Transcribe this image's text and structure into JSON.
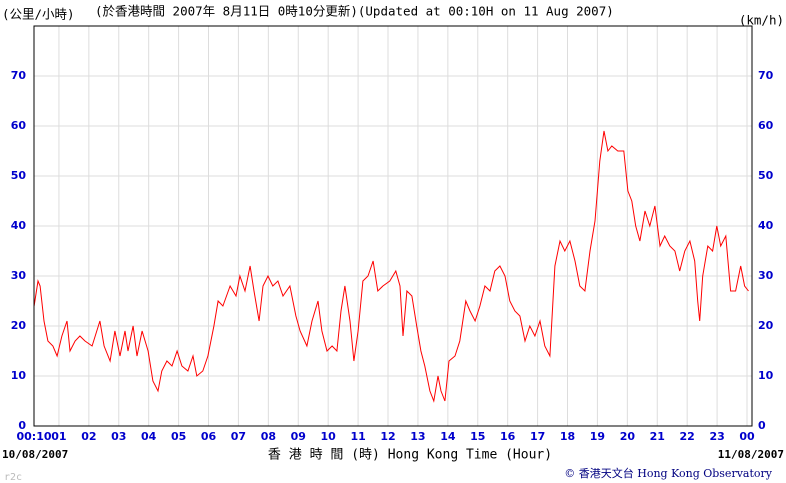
{
  "chart_data": {
    "type": "line",
    "unit_left": "(公里/小時)",
    "title": "(於香港時間 2007年 8月11日 0時10分更新)(Updated at 00:10H on 11 Aug 2007)",
    "unit_right": "(km/h)",
    "start_date": "10/08/2007",
    "end_date": "11/08/2007",
    "x_label": "香 港 時 間 (時) Hong Kong Time (Hour)",
    "credit": "© 香港天文台 Hong Kong Observatory",
    "code": "r2c",
    "xlim": [
      0.1667,
      24.1667
    ],
    "xticks": [
      {
        "value": 0.1667,
        "label": "00:10"
      },
      {
        "value": 1,
        "label": "01"
      },
      {
        "value": 2,
        "label": "02"
      },
      {
        "value": 3,
        "label": "03"
      },
      {
        "value": 4,
        "label": "04"
      },
      {
        "value": 5,
        "label": "05"
      },
      {
        "value": 6,
        "label": "06"
      },
      {
        "value": 7,
        "label": "07"
      },
      {
        "value": 8,
        "label": "08"
      },
      {
        "value": 9,
        "label": "09"
      },
      10,
      11,
      12,
      13,
      14,
      15,
      16,
      17,
      18,
      19,
      20,
      21,
      22,
      23,
      {
        "value": 24,
        "label": "00"
      }
    ],
    "ylim": [
      0,
      80
    ],
    "yticks": [
      0,
      10,
      20,
      30,
      40,
      50,
      60,
      70
    ],
    "grid": true,
    "series": [
      {
        "color": "#ff0000",
        "x": [
          0.17,
          0.3,
          0.37,
          0.5,
          0.63,
          0.8,
          0.94,
          1.1,
          1.27,
          1.37,
          1.54,
          1.7,
          1.87,
          2.11,
          2.37,
          2.51,
          2.71,
          2.87,
          3.04,
          3.21,
          3.31,
          3.48,
          3.61,
          3.78,
          3.98,
          4.14,
          4.31,
          4.44,
          4.61,
          4.78,
          4.95,
          5.11,
          5.31,
          5.48,
          5.61,
          5.81,
          5.98,
          6.18,
          6.32,
          6.48,
          6.72,
          6.92,
          7.05,
          7.22,
          7.39,
          7.52,
          7.69,
          7.82,
          7.99,
          8.15,
          8.32,
          8.49,
          8.72,
          8.92,
          9.06,
          9.29,
          9.46,
          9.66,
          9.79,
          9.96,
          10.13,
          10.29,
          10.43,
          10.56,
          10.73,
          10.86,
          11.0,
          11.16,
          11.33,
          11.5,
          11.66,
          11.83,
          12.06,
          12.26,
          12.4,
          12.5,
          12.63,
          12.8,
          12.96,
          13.1,
          13.23,
          13.4,
          13.53,
          13.67,
          13.77,
          13.9,
          14.04,
          14.24,
          14.4,
          14.6,
          14.74,
          14.91,
          15.07,
          15.24,
          15.41,
          15.57,
          15.74,
          15.91,
          16.07,
          16.24,
          16.41,
          16.58,
          16.74,
          16.91,
          17.08,
          17.24,
          17.41,
          17.58,
          17.75,
          17.91,
          18.08,
          18.25,
          18.41,
          18.58,
          18.75,
          18.92,
          19.08,
          19.22,
          19.35,
          19.48,
          19.68,
          19.88,
          20.02,
          20.15,
          20.28,
          20.42,
          20.59,
          20.75,
          20.92,
          21.09,
          21.25,
          21.42,
          21.59,
          21.75,
          21.92,
          22.09,
          22.25,
          22.35,
          22.42,
          22.52,
          22.69,
          22.85,
          22.99,
          23.12,
          23.29,
          23.45,
          23.62,
          23.79,
          23.92,
          24.05
        ],
        "values": [
          24,
          29,
          28,
          21,
          17,
          16,
          14,
          18,
          21,
          15,
          17,
          18,
          17,
          16,
          21,
          16,
          13,
          19,
          14,
          19,
          15,
          20,
          14,
          19,
          15,
          9,
          7,
          11,
          13,
          12,
          15,
          12,
          11,
          14,
          10,
          11,
          14,
          20,
          25,
          24,
          28,
          26,
          30,
          27,
          32,
          27,
          21,
          28,
          30,
          28,
          29,
          26,
          28,
          22,
          19,
          16,
          21,
          25,
          19,
          15,
          16,
          15,
          23,
          28,
          21,
          13,
          19,
          29,
          30,
          33,
          27,
          28,
          29,
          31,
          28,
          18,
          27,
          26,
          20,
          15,
          12,
          7,
          5,
          10,
          7,
          5,
          13,
          14,
          17,
          25,
          23,
          21,
          24,
          28,
          27,
          31,
          32,
          30,
          25,
          23,
          22,
          17,
          20,
          18,
          21,
          16,
          14,
          32,
          37,
          35,
          37,
          33,
          28,
          27,
          35,
          41,
          53,
          59,
          55,
          56,
          55,
          55,
          47,
          45,
          40,
          37,
          43,
          40,
          44,
          36,
          38,
          36,
          35,
          31,
          35,
          37,
          33,
          25,
          21,
          30,
          36,
          35,
          40,
          36,
          38,
          27,
          27,
          32,
          28,
          27
        ]
      }
    ]
  }
}
